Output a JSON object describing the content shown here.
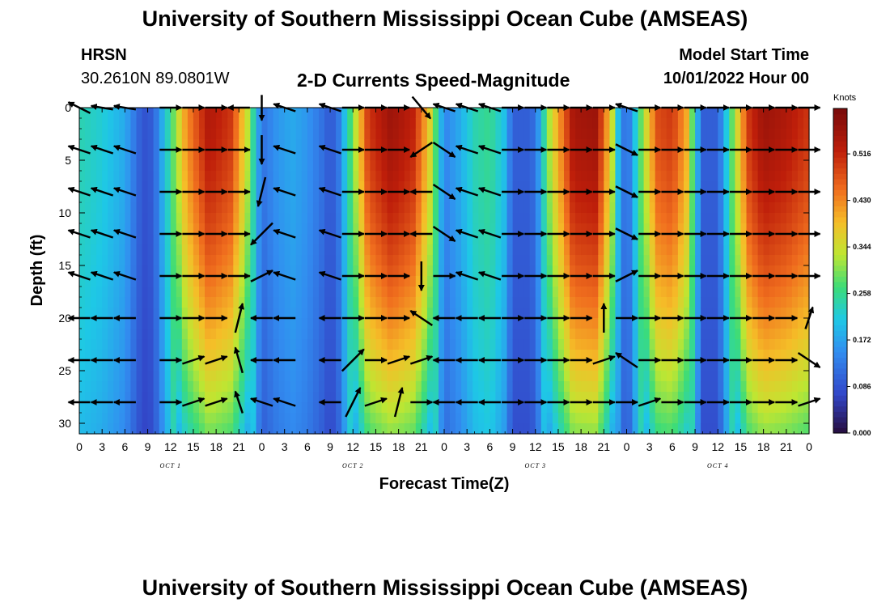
{
  "header": {
    "title": "University of Southern Mississippi Ocean Cube (AMSEAS)",
    "station": "HRSN",
    "coords": "30.2610N  89.0801W",
    "subtitle": "2-D Currents Speed-Magnitude",
    "model_start_label": "Model Start Time",
    "model_start_value": "10/01/2022 Hour 00"
  },
  "footer": {
    "title": "University of Southern Mississippi Ocean Cube (AMSEAS)"
  },
  "chart_data": {
    "type": "heatmap",
    "title": "2-D Currents Speed-Magnitude",
    "xlabel": "Forecast Time(Z)",
    "ylabel": "Depth (ft)",
    "xlim": [
      0,
      96
    ],
    "ylim": [
      31,
      0
    ],
    "x_tick_labels": [
      "0",
      "3",
      "6",
      "9",
      "12",
      "15",
      "18",
      "21",
      "0",
      "3",
      "6",
      "9",
      "12",
      "15",
      "18",
      "21",
      "0",
      "3",
      "6",
      "9",
      "12",
      "15",
      "18",
      "21",
      "0",
      "3",
      "6",
      "9",
      "12",
      "15",
      "18",
      "21",
      "0"
    ],
    "y_ticks": [
      0,
      5,
      10,
      15,
      20,
      25,
      30
    ],
    "y_tick_labels": [
      "0",
      "5",
      "10",
      "15",
      "20",
      "25",
      "30"
    ],
    "day_labels": [
      {
        "hour": 12,
        "label": "OCT 1"
      },
      {
        "hour": 36,
        "label": "OCT 2"
      },
      {
        "hour": 60,
        "label": "OCT 3"
      },
      {
        "hour": 84,
        "label": "OCT 4"
      }
    ],
    "colorbar": {
      "units": "Knots",
      "min": 0.0,
      "max": 0.6,
      "tick_values": [
        0.0,
        0.086,
        0.172,
        0.258,
        0.344,
        0.43,
        0.516
      ],
      "tick_labels": [
        "0.000",
        "0.086",
        "0.172",
        "0.258",
        "0.344",
        "0.430",
        "0.516"
      ]
    },
    "speed_profile_surface": {
      "hours": [
        0,
        3,
        6,
        8,
        9,
        10,
        12,
        14,
        17,
        20,
        22,
        24,
        26,
        28,
        30,
        32,
        33,
        34,
        36,
        38,
        41,
        44,
        46,
        48,
        50,
        52,
        54,
        56,
        57,
        59,
        60,
        62,
        65,
        68,
        70,
        71,
        72,
        74,
        76,
        78,
        80,
        81,
        82,
        84,
        86,
        88,
        90,
        93,
        96
      ],
      "speed": [
        0.24,
        0.22,
        0.18,
        0.1,
        0.08,
        0.12,
        0.26,
        0.42,
        0.54,
        0.5,
        0.35,
        0.12,
        0.16,
        0.18,
        0.16,
        0.12,
        0.09,
        0.12,
        0.3,
        0.5,
        0.56,
        0.52,
        0.38,
        0.14,
        0.18,
        0.24,
        0.26,
        0.2,
        0.1,
        0.1,
        0.12,
        0.34,
        0.55,
        0.56,
        0.36,
        0.18,
        0.1,
        0.3,
        0.48,
        0.5,
        0.4,
        0.22,
        0.1,
        0.1,
        0.3,
        0.5,
        0.56,
        0.54,
        0.5
      ]
    },
    "vector_depths_ft": [
      0,
      4,
      8,
      12,
      16,
      20,
      24,
      28
    ],
    "vector_hours": [
      0,
      3,
      6,
      12,
      15,
      18,
      21,
      24,
      27,
      33,
      36,
      39,
      42,
      45,
      48,
      51,
      54,
      57,
      60,
      63,
      66,
      69,
      72,
      75,
      78,
      81,
      84,
      87,
      90,
      93,
      96
    ],
    "vectors": [
      [
        [
          -0.3,
          0.15
        ],
        [
          -0.3,
          0.05
        ],
        [
          -0.3,
          0.05
        ],
        [
          0.3,
          0.0
        ],
        [
          0.3,
          0.0
        ],
        [
          0.3,
          0.0
        ],
        [
          -0.3,
          0.0
        ],
        [
          0.0,
          -0.35
        ],
        [
          -0.3,
          0.1
        ],
        [
          -0.3,
          0.1
        ],
        [
          0.3,
          0.0
        ],
        [
          0.3,
          0.0
        ],
        [
          0.3,
          0.0
        ],
        [
          0.25,
          -0.3
        ],
        [
          -0.3,
          0.1
        ],
        [
          -0.3,
          0.1
        ],
        [
          -0.3,
          0.1
        ],
        [
          0.3,
          0.0
        ],
        [
          0.3,
          0.0
        ],
        [
          0.3,
          0.0
        ],
        [
          0.3,
          0.0
        ],
        [
          0.3,
          0.0
        ],
        [
          -0.3,
          0.1
        ],
        [
          0.3,
          0.0
        ],
        [
          0.3,
          0.0
        ],
        [
          0.3,
          0.0
        ],
        [
          0.3,
          0.0
        ],
        [
          0.3,
          0.0
        ],
        [
          0.3,
          0.0
        ],
        [
          0.3,
          0.0
        ],
        [
          0.3,
          0.0
        ]
      ],
      [
        [
          -0.3,
          0.1
        ],
        [
          -0.3,
          0.1
        ],
        [
          -0.3,
          0.1
        ],
        [
          0.3,
          0.0
        ],
        [
          0.3,
          0.0
        ],
        [
          0.3,
          0.0
        ],
        [
          0.3,
          0.0
        ],
        [
          0.0,
          -0.4
        ],
        [
          -0.3,
          0.1
        ],
        [
          -0.3,
          0.1
        ],
        [
          0.3,
          0.0
        ],
        [
          0.3,
          0.0
        ],
        [
          0.3,
          0.0
        ],
        [
          -0.3,
          -0.2
        ],
        [
          0.3,
          -0.2
        ],
        [
          -0.3,
          0.1
        ],
        [
          -0.3,
          0.1
        ],
        [
          0.3,
          0.0
        ],
        [
          0.3,
          0.0
        ],
        [
          0.3,
          0.0
        ],
        [
          0.3,
          0.0
        ],
        [
          0.3,
          0.0
        ],
        [
          0.3,
          -0.15
        ],
        [
          0.3,
          0.0
        ],
        [
          0.3,
          0.0
        ],
        [
          0.3,
          0.0
        ],
        [
          0.3,
          0.0
        ],
        [
          0.3,
          0.0
        ],
        [
          0.3,
          0.0
        ],
        [
          0.3,
          0.0
        ],
        [
          0.3,
          0.0
        ]
      ],
      [
        [
          -0.3,
          0.1
        ],
        [
          -0.3,
          0.1
        ],
        [
          -0.3,
          0.1
        ],
        [
          0.3,
          0.0
        ],
        [
          0.3,
          0.0
        ],
        [
          0.3,
          0.0
        ],
        [
          0.3,
          0.0
        ],
        [
          -0.1,
          -0.4
        ],
        [
          -0.3,
          0.1
        ],
        [
          -0.3,
          0.1
        ],
        [
          0.3,
          0.0
        ],
        [
          0.3,
          0.0
        ],
        [
          0.3,
          0.0
        ],
        [
          -0.3,
          0.0
        ],
        [
          0.3,
          -0.2
        ],
        [
          -0.3,
          0.1
        ],
        [
          -0.3,
          0.1
        ],
        [
          0.3,
          0.0
        ],
        [
          0.3,
          0.0
        ],
        [
          0.3,
          0.0
        ],
        [
          0.3,
          0.0
        ],
        [
          0.3,
          0.0
        ],
        [
          0.3,
          -0.15
        ],
        [
          0.3,
          0.0
        ],
        [
          0.3,
          0.0
        ],
        [
          0.3,
          0.0
        ],
        [
          0.3,
          0.0
        ],
        [
          0.3,
          0.0
        ],
        [
          0.3,
          0.0
        ],
        [
          0.3,
          0.0
        ],
        [
          0.3,
          0.0
        ]
      ],
      [
        [
          -0.3,
          0.1
        ],
        [
          -0.3,
          0.1
        ],
        [
          -0.3,
          0.1
        ],
        [
          0.3,
          0.0
        ],
        [
          0.3,
          0.0
        ],
        [
          0.3,
          0.0
        ],
        [
          0.3,
          0.0
        ],
        [
          -0.3,
          -0.3
        ],
        [
          -0.3,
          0.1
        ],
        [
          -0.3,
          0.1
        ],
        [
          0.3,
          0.0
        ],
        [
          0.3,
          0.0
        ],
        [
          0.3,
          0.0
        ],
        [
          -0.3,
          0.0
        ],
        [
          0.3,
          -0.2
        ],
        [
          -0.3,
          0.1
        ],
        [
          -0.3,
          0.1
        ],
        [
          0.3,
          0.0
        ],
        [
          0.3,
          0.0
        ],
        [
          0.3,
          0.0
        ],
        [
          0.3,
          0.0
        ],
        [
          0.3,
          0.0
        ],
        [
          0.3,
          -0.15
        ],
        [
          0.3,
          0.0
        ],
        [
          0.3,
          0.0
        ],
        [
          0.3,
          0.0
        ],
        [
          0.3,
          0.0
        ],
        [
          0.3,
          0.0
        ],
        [
          0.3,
          0.0
        ],
        [
          0.3,
          0.0
        ],
        [
          0.3,
          0.0
        ]
      ],
      [
        [
          -0.3,
          0.1
        ],
        [
          -0.3,
          0.1
        ],
        [
          -0.3,
          0.1
        ],
        [
          0.3,
          0.0
        ],
        [
          0.3,
          0.0
        ],
        [
          0.3,
          0.0
        ],
        [
          0.3,
          0.0
        ],
        [
          0.3,
          0.15
        ],
        [
          -0.3,
          0.1
        ],
        [
          -0.3,
          0.1
        ],
        [
          0.3,
          0.0
        ],
        [
          0.3,
          0.0
        ],
        [
          0.3,
          0.0
        ],
        [
          0.0,
          -0.4
        ],
        [
          0.3,
          0.0
        ],
        [
          -0.3,
          0.1
        ],
        [
          -0.3,
          0.1
        ],
        [
          0.3,
          0.0
        ],
        [
          0.3,
          0.0
        ],
        [
          0.3,
          0.0
        ],
        [
          0.3,
          0.0
        ],
        [
          0.3,
          0.0
        ],
        [
          0.3,
          0.15
        ],
        [
          0.3,
          0.0
        ],
        [
          0.3,
          0.0
        ],
        [
          0.3,
          0.0
        ],
        [
          0.3,
          0.0
        ],
        [
          0.3,
          0.0
        ],
        [
          0.3,
          0.0
        ],
        [
          0.3,
          0.0
        ],
        [
          0.3,
          0.0
        ]
      ],
      [
        [
          -0.3,
          0.0
        ],
        [
          -0.3,
          0.0
        ],
        [
          -0.3,
          0.0
        ],
        [
          0.3,
          0.0
        ],
        [
          0.3,
          0.0
        ],
        [
          0.3,
          0.0
        ],
        [
          0.1,
          0.4
        ],
        [
          -0.3,
          0.0
        ],
        [
          -0.3,
          0.0
        ],
        [
          -0.3,
          0.0
        ],
        [
          0.3,
          0.0
        ],
        [
          0.3,
          0.0
        ],
        [
          0.3,
          0.0
        ],
        [
          -0.3,
          0.2
        ],
        [
          -0.3,
          0.0
        ],
        [
          -0.3,
          0.0
        ],
        [
          -0.3,
          0.0
        ],
        [
          0.3,
          0.0
        ],
        [
          0.3,
          0.0
        ],
        [
          0.3,
          0.0
        ],
        [
          0.3,
          0.0
        ],
        [
          0.0,
          0.4
        ],
        [
          0.3,
          0.0
        ],
        [
          0.3,
          0.0
        ],
        [
          0.3,
          0.0
        ],
        [
          0.3,
          0.0
        ],
        [
          0.3,
          0.0
        ],
        [
          0.3,
          0.0
        ],
        [
          0.3,
          0.0
        ],
        [
          0.3,
          0.0
        ],
        [
          0.1,
          0.3
        ]
      ],
      [
        [
          -0.3,
          0.0
        ],
        [
          -0.3,
          0.0
        ],
        [
          -0.3,
          0.0
        ],
        [
          0.3,
          0.0
        ],
        [
          0.3,
          0.1
        ],
        [
          0.3,
          0.1
        ],
        [
          -0.1,
          0.35
        ],
        [
          -0.3,
          0.0
        ],
        [
          -0.3,
          0.0
        ],
        [
          -0.3,
          0.0
        ],
        [
          0.3,
          0.3
        ],
        [
          0.3,
          0.0
        ],
        [
          0.3,
          0.1
        ],
        [
          0.3,
          0.1
        ],
        [
          -0.3,
          0.0
        ],
        [
          -0.3,
          0.0
        ],
        [
          -0.3,
          0.0
        ],
        [
          0.3,
          0.0
        ],
        [
          0.3,
          0.0
        ],
        [
          0.3,
          0.0
        ],
        [
          0.3,
          0.0
        ],
        [
          0.3,
          0.1
        ],
        [
          -0.3,
          0.2
        ],
        [
          0.3,
          0.0
        ],
        [
          0.3,
          0.0
        ],
        [
          0.3,
          0.0
        ],
        [
          0.3,
          0.0
        ],
        [
          0.3,
          0.0
        ],
        [
          0.3,
          0.0
        ],
        [
          0.3,
          0.0
        ],
        [
          0.3,
          -0.2
        ]
      ],
      [
        [
          -0.3,
          0.0
        ],
        [
          -0.3,
          0.0
        ],
        [
          -0.3,
          0.0
        ],
        [
          0.3,
          0.0
        ],
        [
          0.3,
          0.1
        ],
        [
          0.3,
          0.1
        ],
        [
          -0.1,
          0.3
        ],
        [
          -0.3,
          0.1
        ],
        [
          -0.3,
          0.1
        ],
        [
          -0.3,
          0.0
        ],
        [
          0.2,
          0.4
        ],
        [
          0.3,
          0.1
        ],
        [
          0.1,
          0.4
        ],
        [
          0.3,
          0.0
        ],
        [
          -0.3,
          0.0
        ],
        [
          -0.3,
          0.0
        ],
        [
          -0.3,
          0.0
        ],
        [
          0.3,
          0.0
        ],
        [
          0.3,
          0.0
        ],
        [
          0.3,
          0.0
        ],
        [
          0.3,
          0.0
        ],
        [
          0.3,
          0.0
        ],
        [
          0.3,
          0.0
        ],
        [
          0.3,
          0.1
        ],
        [
          0.3,
          0.0
        ],
        [
          0.3,
          0.0
        ],
        [
          0.3,
          0.0
        ],
        [
          0.3,
          0.0
        ],
        [
          0.3,
          0.0
        ],
        [
          0.3,
          0.0
        ],
        [
          0.3,
          0.1
        ]
      ]
    ]
  }
}
